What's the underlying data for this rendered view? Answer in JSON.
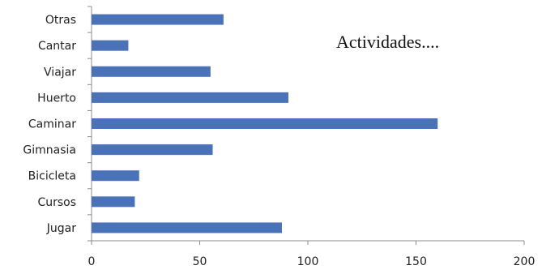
{
  "chart_data": {
    "type": "bar",
    "orientation": "horizontal",
    "title": "Actividades....",
    "categories": [
      "Jugar",
      "Cursos",
      "Bicicleta",
      "Gimnasia",
      "Caminar",
      "Huerto",
      "Viajar",
      "Cantar",
      "Otras"
    ],
    "values": [
      88,
      20,
      22,
      56,
      160,
      91,
      55,
      17,
      61
    ],
    "xlim": [
      0,
      200
    ],
    "xticks": [
      0,
      50,
      100,
      150,
      200
    ],
    "xlabel": "",
    "ylabel": "",
    "grid": false,
    "legend": "none",
    "bar_color": "#4a72b8"
  }
}
